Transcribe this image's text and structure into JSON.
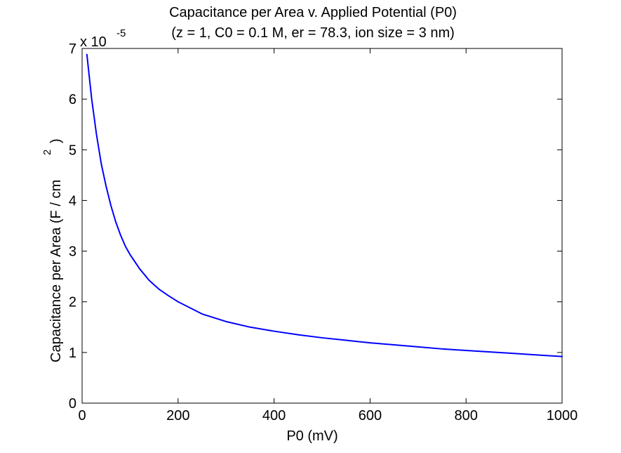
{
  "chart_data": {
    "type": "line",
    "title": "Capacitance per Area v. Applied Potential (P0)",
    "subtitle": "(z = 1, C0 = 0.1 M, er = 78.3, ion size = 3 nm)",
    "xlabel": "P0 (mV)",
    "ylabel_main": "Capacitance per Area (F / cm",
    "ylabel_exponent": "2",
    "ylabel_close": ")",
    "y_multiplier_base": "x 10",
    "y_multiplier_exponent": "-5",
    "xlim": [
      0,
      1000
    ],
    "ylim": [
      0,
      7
    ],
    "xticks": [
      0,
      200,
      400,
      600,
      800,
      1000
    ],
    "xtick_labels": [
      "0",
      "200",
      "400",
      "600",
      "800",
      "1000"
    ],
    "yticks": [
      0,
      1,
      2,
      3,
      4,
      5,
      6,
      7
    ],
    "ytick_labels": [
      "0",
      "1",
      "2",
      "3",
      "4",
      "5",
      "6",
      "7"
    ],
    "grid": false,
    "series": [
      {
        "color": "#0000ff",
        "x": [
          10,
          20,
          30,
          40,
          50,
          60,
          70,
          80,
          90,
          100,
          120,
          140,
          160,
          180,
          200,
          250,
          300,
          350,
          400,
          450,
          500,
          550,
          600,
          650,
          700,
          750,
          800,
          850,
          900,
          950,
          1000
        ],
        "y": [
          6.88,
          6.0,
          5.3,
          4.72,
          4.28,
          3.9,
          3.58,
          3.32,
          3.1,
          2.93,
          2.65,
          2.42,
          2.25,
          2.12,
          2.0,
          1.76,
          1.61,
          1.5,
          1.42,
          1.35,
          1.29,
          1.24,
          1.19,
          1.15,
          1.11,
          1.07,
          1.04,
          1.01,
          0.98,
          0.95,
          0.92
        ]
      }
    ]
  }
}
